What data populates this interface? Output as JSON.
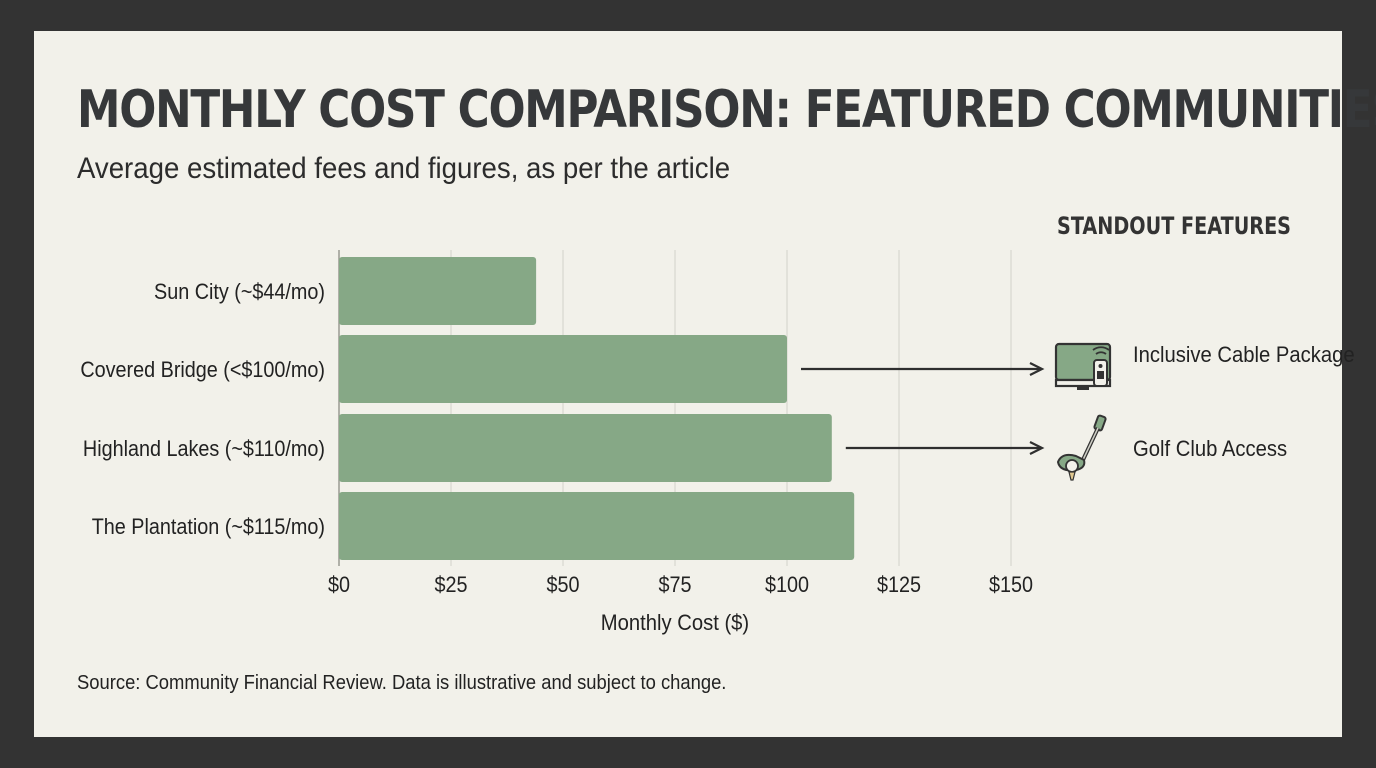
{
  "header": {
    "title": "MONTHLY COST COMPARISON: FEATURED COMMUNITIES",
    "subtitle": "Average estimated fees and figures, as per the article"
  },
  "features": {
    "heading": "STANDOUT FEATURES",
    "items": [
      {
        "label": "Inclusive Cable Package",
        "icon": "tv-remote-icon",
        "category": "Covered Bridge (<$100/mo)"
      },
      {
        "label": "Golf Club Access",
        "icon": "golf-club-icon",
        "category": "Highland Lakes (~$110/mo)"
      }
    ]
  },
  "footer": {
    "source": "Source: Community Financial Review. Data is illustrative and subject to change."
  },
  "colors": {
    "bar": "#86a886",
    "grid": "#d8d7cf",
    "text": "#222222",
    "background": "#f2f1ea",
    "frame": "#333333"
  },
  "chart_data": {
    "type": "bar",
    "orientation": "horizontal",
    "categories": [
      "Sun City (~$44/mo)",
      "Covered Bridge (<$100/mo)",
      "Highland Lakes (~$110/mo)",
      "The Plantation (~$115/mo)"
    ],
    "values": [
      44,
      100,
      110,
      115
    ],
    "xlabel": "Monthly Cost ($)",
    "ylabel": "",
    "xlim": [
      0,
      150
    ],
    "xticks": [
      0,
      25,
      50,
      75,
      100,
      125,
      150
    ],
    "xtick_labels": [
      "$0",
      "$25",
      "$50",
      "$75",
      "$100",
      "$125",
      "$150"
    ],
    "grid": "vertical",
    "legend": "none"
  }
}
